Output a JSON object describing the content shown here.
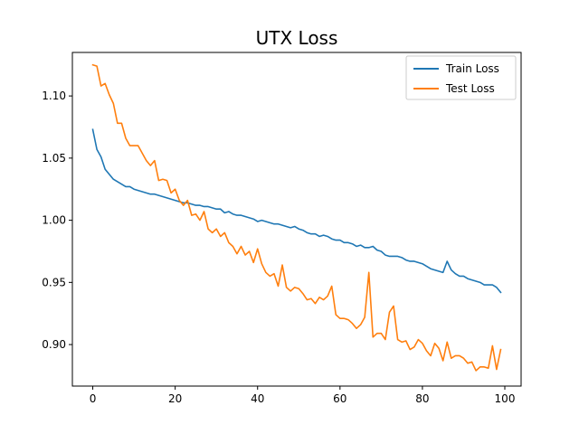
{
  "chart_data": {
    "type": "line",
    "title": "UTX Loss",
    "xlabel": "",
    "ylabel": "",
    "xlim": [
      -4.95,
      103.95
    ],
    "ylim": [
      0.8666,
      1.135
    ],
    "xticks": [
      0,
      20,
      40,
      60,
      80,
      100
    ],
    "xtick_labels": [
      "0",
      "20",
      "40",
      "60",
      "80",
      "100"
    ],
    "yticks": [
      0.9,
      0.95,
      1.0,
      1.05,
      1.1
    ],
    "ytick_labels": [
      "0.90",
      "0.95",
      "1.00",
      "1.05",
      "1.10"
    ],
    "grid": false,
    "legend_position": "top-right",
    "x": [
      0,
      1,
      2,
      3,
      4,
      5,
      6,
      7,
      8,
      9,
      10,
      11,
      12,
      13,
      14,
      15,
      16,
      17,
      18,
      19,
      20,
      21,
      22,
      23,
      24,
      25,
      26,
      27,
      28,
      29,
      30,
      31,
      32,
      33,
      34,
      35,
      36,
      37,
      38,
      39,
      40,
      41,
      42,
      43,
      44,
      45,
      46,
      47,
      48,
      49,
      50,
      51,
      52,
      53,
      54,
      55,
      56,
      57,
      58,
      59,
      60,
      61,
      62,
      63,
      64,
      65,
      66,
      67,
      68,
      69,
      70,
      71,
      72,
      73,
      74,
      75,
      76,
      77,
      78,
      79,
      80,
      81,
      82,
      83,
      84,
      85,
      86,
      87,
      88,
      89,
      90,
      91,
      92,
      93,
      94,
      95,
      96,
      97,
      98,
      99
    ],
    "series": [
      {
        "name": "Train Loss",
        "color": "#1f77b4",
        "values": [
          1.073,
          1.057,
          1.051,
          1.041,
          1.037,
          1.033,
          1.031,
          1.029,
          1.027,
          1.027,
          1.025,
          1.024,
          1.023,
          1.022,
          1.021,
          1.021,
          1.02,
          1.019,
          1.018,
          1.017,
          1.016,
          1.015,
          1.014,
          1.014,
          1.013,
          1.012,
          1.012,
          1.011,
          1.011,
          1.01,
          1.009,
          1.009,
          1.006,
          1.007,
          1.005,
          1.004,
          1.004,
          1.003,
          1.002,
          1.001,
          0.999,
          1.0,
          0.999,
          0.998,
          0.997,
          0.997,
          0.996,
          0.995,
          0.994,
          0.995,
          0.993,
          0.992,
          0.99,
          0.989,
          0.989,
          0.987,
          0.988,
          0.987,
          0.985,
          0.984,
          0.984,
          0.982,
          0.982,
          0.981,
          0.979,
          0.98,
          0.978,
          0.978,
          0.979,
          0.976,
          0.975,
          0.972,
          0.971,
          0.971,
          0.971,
          0.97,
          0.968,
          0.967,
          0.967,
          0.966,
          0.965,
          0.963,
          0.961,
          0.96,
          0.959,
          0.958,
          0.967,
          0.96,
          0.957,
          0.955,
          0.955,
          0.953,
          0.952,
          0.951,
          0.95,
          0.948,
          0.948,
          0.948,
          0.946,
          0.942
        ]
      },
      {
        "name": "Test Loss",
        "color": "#ff7f0e",
        "values": [
          1.125,
          1.124,
          1.108,
          1.11,
          1.101,
          1.094,
          1.078,
          1.078,
          1.066,
          1.06,
          1.06,
          1.06,
          1.054,
          1.048,
          1.044,
          1.048,
          1.032,
          1.033,
          1.032,
          1.022,
          1.025,
          1.016,
          1.012,
          1.016,
          1.004,
          1.005,
          1.0,
          1.007,
          0.993,
          0.99,
          0.993,
          0.987,
          0.99,
          0.982,
          0.979,
          0.973,
          0.979,
          0.972,
          0.975,
          0.966,
          0.977,
          0.965,
          0.958,
          0.955,
          0.957,
          0.947,
          0.964,
          0.946,
          0.943,
          0.946,
          0.945,
          0.941,
          0.936,
          0.937,
          0.933,
          0.938,
          0.936,
          0.939,
          0.947,
          0.924,
          0.921,
          0.921,
          0.92,
          0.917,
          0.913,
          0.916,
          0.922,
          0.958,
          0.906,
          0.909,
          0.909,
          0.904,
          0.926,
          0.931,
          0.904,
          0.902,
          0.903,
          0.896,
          0.898,
          0.904,
          0.901,
          0.895,
          0.891,
          0.901,
          0.897,
          0.887,
          0.902,
          0.889,
          0.891,
          0.891,
          0.889,
          0.885,
          0.886,
          0.879,
          0.882,
          0.882,
          0.881,
          0.899,
          0.88,
          0.896
        ]
      }
    ]
  }
}
